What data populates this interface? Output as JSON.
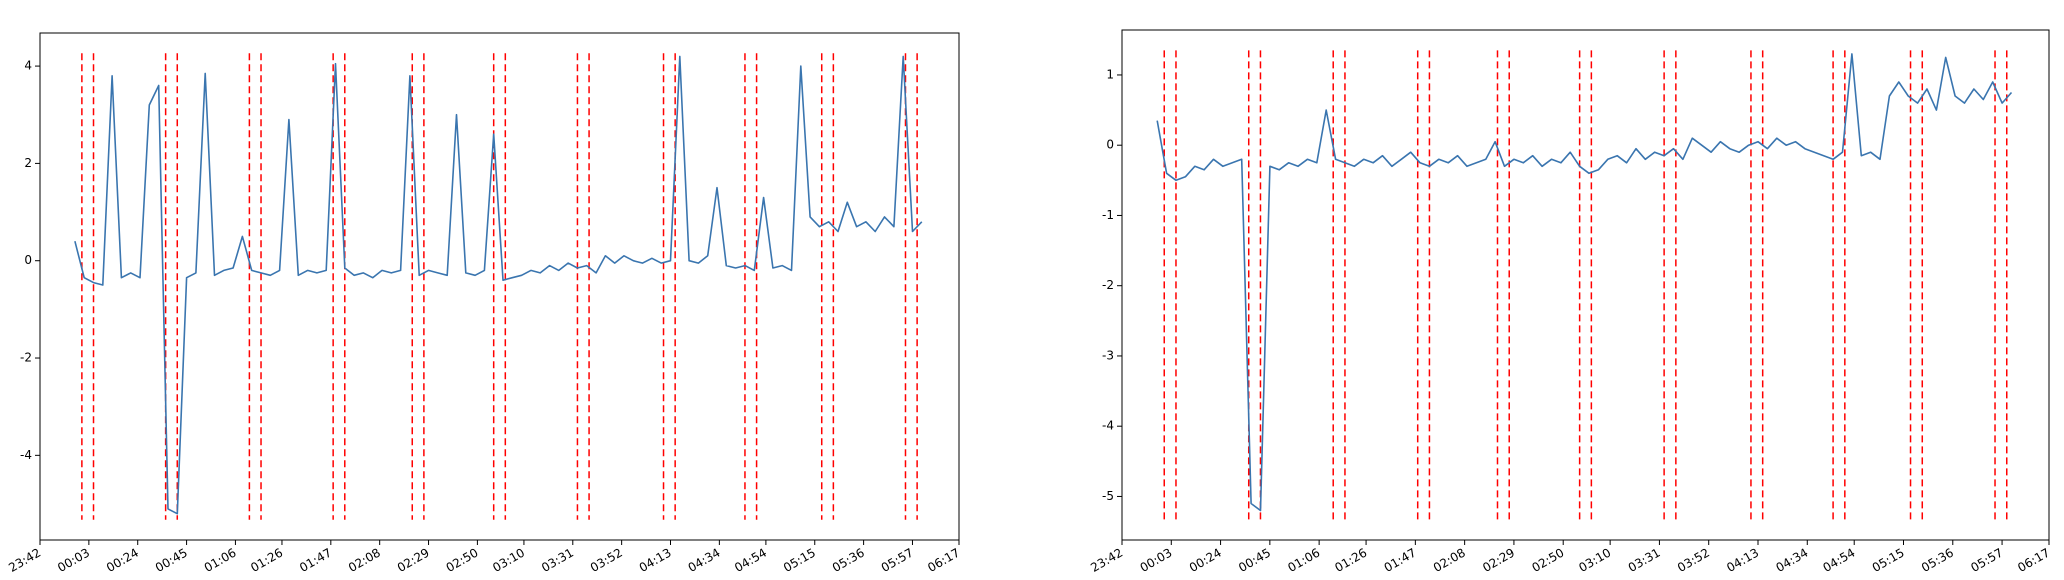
{
  "chart_data": [
    {
      "type": "line",
      "x": [
        "23:57",
        "00:01",
        "00:05",
        "00:09",
        "00:13",
        "00:17",
        "00:21",
        "00:25",
        "00:29",
        "00:33",
        "00:37",
        "00:41",
        "00:45",
        "00:49",
        "00:53",
        "00:57",
        "01:01",
        "01:05",
        "01:09",
        "01:13",
        "01:17",
        "01:21",
        "01:25",
        "01:29",
        "01:33",
        "01:37",
        "01:41",
        "01:45",
        "01:49",
        "01:53",
        "01:57",
        "02:01",
        "02:05",
        "02:09",
        "02:13",
        "02:17",
        "02:21",
        "02:25",
        "02:29",
        "02:33",
        "02:37",
        "02:41",
        "02:45",
        "02:49",
        "02:53",
        "02:57",
        "03:01",
        "03:05",
        "03:09",
        "03:13",
        "03:17",
        "03:21",
        "03:25",
        "03:29",
        "03:33",
        "03:37",
        "03:41",
        "03:45",
        "03:49",
        "03:53",
        "03:57",
        "04:01",
        "04:05",
        "04:09",
        "04:13",
        "04:17",
        "04:21",
        "04:25",
        "04:29",
        "04:33",
        "04:37",
        "04:41",
        "04:45",
        "04:49",
        "04:53",
        "04:57",
        "05:01",
        "05:05",
        "05:09",
        "05:13",
        "05:17",
        "05:21",
        "05:25",
        "05:29",
        "05:33",
        "05:37",
        "05:41",
        "05:45",
        "05:49",
        "05:53",
        "05:57",
        "06:01"
      ],
      "series": [
        {
          "color": "#3a75af",
          "values": [
            0.4,
            -0.35,
            -0.45,
            -0.5,
            3.8,
            -0.35,
            -0.25,
            -0.35,
            3.2,
            3.6,
            -5.1,
            -5.2,
            -0.35,
            -0.25,
            3.85,
            -0.3,
            -0.2,
            -0.15,
            0.5,
            -0.2,
            -0.25,
            -0.3,
            -0.2,
            2.9,
            -0.3,
            -0.2,
            -0.25,
            -0.2,
            4.05,
            -0.15,
            -0.3,
            -0.25,
            -0.35,
            -0.2,
            -0.25,
            -0.2,
            3.8,
            -0.3,
            -0.2,
            -0.25,
            -0.3,
            3.0,
            -0.25,
            -0.3,
            -0.2,
            2.6,
            -0.4,
            -0.35,
            -0.3,
            -0.2,
            -0.25,
            -0.1,
            -0.2,
            -0.05,
            -0.15,
            -0.1,
            -0.25,
            0.1,
            -0.05,
            0.1,
            0.0,
            -0.05,
            0.05,
            -0.05,
            0.0,
            4.2,
            0.0,
            -0.05,
            0.1,
            1.5,
            -0.1,
            -0.15,
            -0.1,
            -0.2,
            1.3,
            -0.15,
            -0.1,
            -0.2,
            4.0,
            0.9,
            0.7,
            0.8,
            0.6,
            1.2,
            0.7,
            0.8,
            0.6,
            0.9,
            0.7,
            4.2,
            0.6,
            0.8
          ]
        }
      ],
      "vlines": {
        "color": "#ff0000",
        "x": [
          "00:00",
          "00:05",
          "00:36",
          "00:41",
          "01:12",
          "01:17",
          "01:48",
          "01:53",
          "02:22",
          "02:27",
          "02:57",
          "03:02",
          "03:33",
          "03:38",
          "04:10",
          "04:15",
          "04:45",
          "04:50",
          "05:18",
          "05:23",
          "05:54",
          "05:59"
        ]
      },
      "xlim": [
        "23:42",
        "06:17"
      ],
      "xticks": [
        "23:42",
        "00:03",
        "00:24",
        "00:45",
        "01:06",
        "01:26",
        "01:47",
        "02:08",
        "02:29",
        "02:50",
        "03:10",
        "03:31",
        "03:52",
        "04:13",
        "04:34",
        "04:54",
        "05:15",
        "05:36",
        "05:57",
        "06:17"
      ],
      "ylim": [
        -5.74,
        4.68
      ],
      "yticks": [
        -4,
        -2,
        0,
        2,
        4
      ]
    },
    {
      "type": "line",
      "x": [
        "23:57",
        "00:01",
        "00:05",
        "00:09",
        "00:13",
        "00:17",
        "00:21",
        "00:25",
        "00:29",
        "00:33",
        "00:37",
        "00:41",
        "00:45",
        "00:49",
        "00:53",
        "00:57",
        "01:01",
        "01:05",
        "01:09",
        "01:13",
        "01:17",
        "01:21",
        "01:25",
        "01:29",
        "01:33",
        "01:37",
        "01:41",
        "01:45",
        "01:49",
        "01:53",
        "01:57",
        "02:01",
        "02:05",
        "02:09",
        "02:13",
        "02:17",
        "02:21",
        "02:25",
        "02:29",
        "02:33",
        "02:37",
        "02:41",
        "02:45",
        "02:49",
        "02:53",
        "02:57",
        "03:01",
        "03:05",
        "03:09",
        "03:13",
        "03:17",
        "03:21",
        "03:25",
        "03:29",
        "03:33",
        "03:37",
        "03:41",
        "03:45",
        "03:49",
        "03:53",
        "03:57",
        "04:01",
        "04:05",
        "04:09",
        "04:13",
        "04:17",
        "04:21",
        "04:25",
        "04:29",
        "04:33",
        "04:37",
        "04:41",
        "04:45",
        "04:49",
        "04:53",
        "04:57",
        "05:01",
        "05:05",
        "05:09",
        "05:13",
        "05:17",
        "05:21",
        "05:25",
        "05:29",
        "05:33",
        "05:37",
        "05:41",
        "05:45",
        "05:49",
        "05:53",
        "05:57",
        "06:01"
      ],
      "series": [
        {
          "color": "#3a75af",
          "values": [
            0.35,
            -0.4,
            -0.5,
            -0.45,
            -0.3,
            -0.35,
            -0.2,
            -0.3,
            -0.25,
            -0.2,
            -5.1,
            -5.2,
            -0.3,
            -0.35,
            -0.25,
            -0.3,
            -0.2,
            -0.25,
            0.5,
            -0.2,
            -0.25,
            -0.3,
            -0.2,
            -0.25,
            -0.15,
            -0.3,
            -0.2,
            -0.1,
            -0.25,
            -0.3,
            -0.2,
            -0.25,
            -0.15,
            -0.3,
            -0.25,
            -0.2,
            0.05,
            -0.3,
            -0.2,
            -0.25,
            -0.15,
            -0.3,
            -0.2,
            -0.25,
            -0.1,
            -0.3,
            -0.4,
            -0.35,
            -0.2,
            -0.15,
            -0.25,
            -0.05,
            -0.2,
            -0.1,
            -0.15,
            -0.05,
            -0.2,
            0.1,
            0.0,
            -0.1,
            0.05,
            -0.05,
            -0.1,
            0.0,
            0.05,
            -0.05,
            0.1,
            0.0,
            0.05,
            -0.05,
            -0.1,
            -0.15,
            -0.2,
            -0.1,
            1.3,
            -0.15,
            -0.1,
            -0.2,
            0.7,
            0.9,
            0.7,
            0.6,
            0.8,
            0.5,
            1.25,
            0.7,
            0.6,
            0.8,
            0.65,
            0.9,
            0.6,
            0.75
          ]
        }
      ],
      "vlines": {
        "color": "#ff0000",
        "x": [
          "00:00",
          "00:05",
          "00:36",
          "00:41",
          "01:12",
          "01:17",
          "01:48",
          "01:53",
          "02:22",
          "02:27",
          "02:57",
          "03:02",
          "03:33",
          "03:38",
          "04:10",
          "04:15",
          "04:45",
          "04:50",
          "05:18",
          "05:23",
          "05:54",
          "05:59"
        ]
      },
      "xlim": [
        "23:42",
        "06:17"
      ],
      "xticks": [
        "23:42",
        "00:03",
        "00:24",
        "00:45",
        "01:06",
        "01:26",
        "01:47",
        "02:08",
        "02:29",
        "02:50",
        "03:10",
        "03:31",
        "03:52",
        "04:13",
        "04:34",
        "04:54",
        "05:15",
        "05:36",
        "05:57",
        "06:17"
      ],
      "ylim": [
        -5.62,
        1.64
      ],
      "yticks": [
        -5,
        -4,
        -3,
        -2,
        -1,
        0,
        1
      ]
    }
  ]
}
